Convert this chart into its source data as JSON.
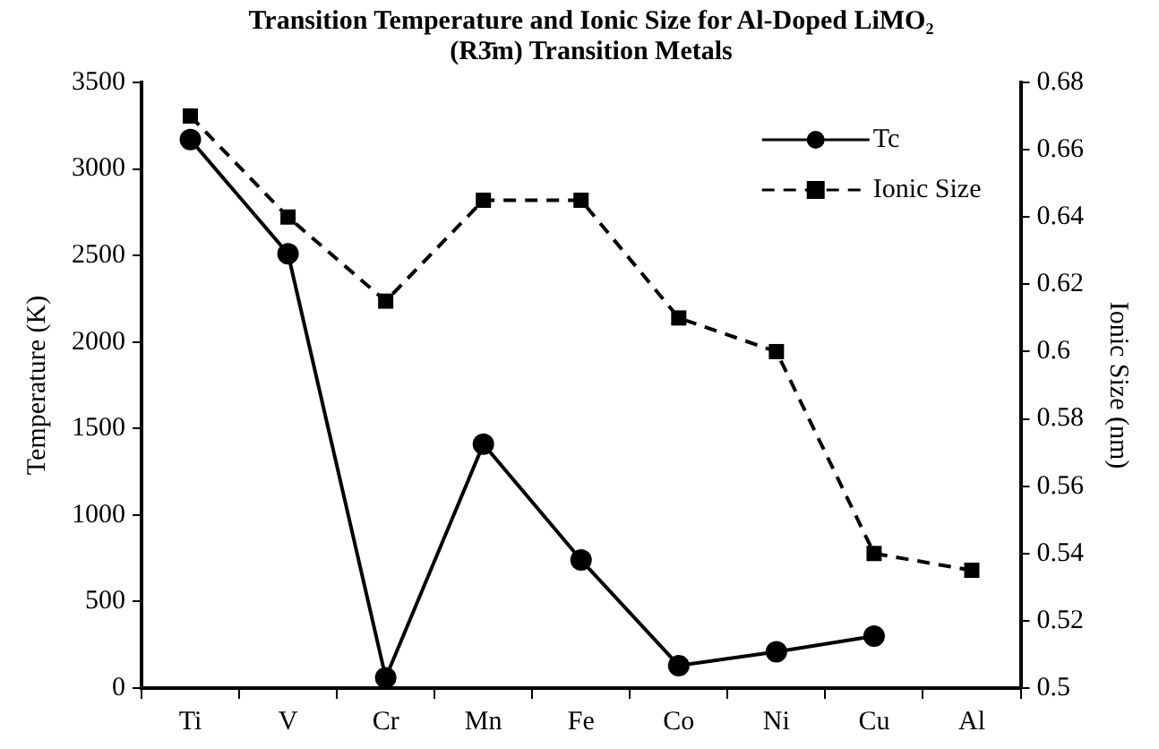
{
  "chart_data": {
    "type": "line",
    "title": "Transition Temperature and Ionic Size for Al-Doped LiMO₂ (R3̄m) Transition Metals",
    "ylabel": "Temperature (K)",
    "y2label": "Ionic Size (nm)",
    "categories": [
      "Ti",
      "V",
      "Cr",
      "Mn",
      "Fe",
      "Co",
      "Ni",
      "Cu",
      "Al"
    ],
    "series": [
      {
        "name": "Tc",
        "color": "#000000",
        "marker": "circle",
        "line_style": "solid",
        "values": [
          3170,
          2510,
          60,
          1410,
          740,
          130,
          210,
          300,
          null
        ]
      },
      {
        "name": "Ionic Size",
        "color": "#000000",
        "marker": "square",
        "line_style": "dashed",
        "axis": "y2",
        "values": [
          0.67,
          0.64,
          0.615,
          0.645,
          0.645,
          0.61,
          0.6,
          0.54,
          0.535
        ]
      }
    ],
    "ylim": [
      0,
      3500
    ],
    "yticks": [
      0,
      500,
      1000,
      1500,
      2000,
      2500,
      3000,
      3500
    ],
    "y2lim": [
      0.5,
      0.68
    ],
    "y2ticks": [
      0.5,
      0.52,
      0.54,
      0.56,
      0.58,
      0.6,
      0.62,
      0.64,
      0.66,
      0.68
    ],
    "grid": false,
    "legend": "top right"
  }
}
